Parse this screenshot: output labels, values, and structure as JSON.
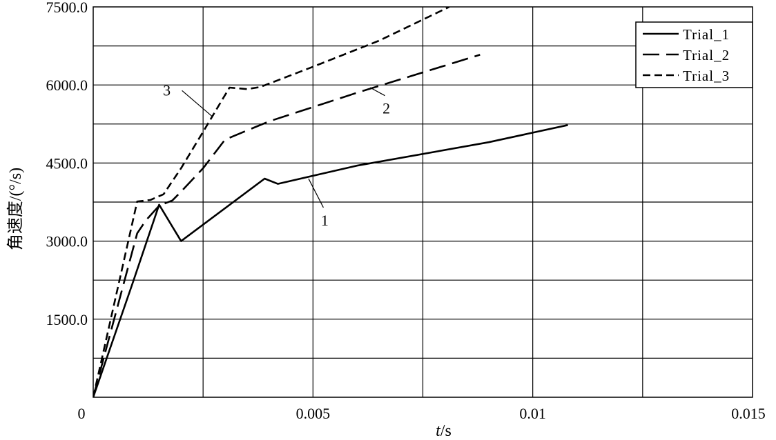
{
  "chart_data": {
    "type": "line",
    "title": "",
    "xlabel_italic": "t",
    "xlabel_rest": "/s",
    "ylabel": "角速度/(°/s)",
    "xlim": [
      0,
      0.015
    ],
    "ylim": [
      0,
      7500
    ],
    "x_ticks": [
      {
        "value": 0,
        "label": "0"
      },
      {
        "value": 0.005,
        "label": "0.005"
      },
      {
        "value": 0.01,
        "label": "0.01"
      },
      {
        "value": 0.015,
        "label": "0.015"
      }
    ],
    "y_ticks": [
      {
        "value": 1500,
        "label": "1500.0"
      },
      {
        "value": 3000,
        "label": "3000.0"
      },
      {
        "value": 4500,
        "label": "4500.0"
      },
      {
        "value": 6000,
        "label": "6000.0"
      },
      {
        "value": 7500,
        "label": "7500.0"
      }
    ],
    "x_grid": [
      0.0025,
      0.005,
      0.0075,
      0.01,
      0.0125
    ],
    "y_grid": [
      750,
      1500,
      2250,
      3000,
      3750,
      4500,
      5250,
      6000,
      6750
    ],
    "grid": true,
    "legend_position": "top-right",
    "series": [
      {
        "name": "Trial_1",
        "dash": "solid",
        "points": [
          [
            0,
            0
          ],
          [
            0.0009,
            2200
          ],
          [
            0.0015,
            3700
          ],
          [
            0.002,
            3000
          ],
          [
            0.0039,
            4200
          ],
          [
            0.0042,
            4100
          ],
          [
            0.006,
            4450
          ],
          [
            0.009,
            4900
          ],
          [
            0.0108,
            5230
          ]
        ]
      },
      {
        "name": "Trial_2",
        "dash": "long",
        "points": [
          [
            0,
            0
          ],
          [
            0.001,
            3150
          ],
          [
            0.0012,
            3400
          ],
          [
            0.0015,
            3680
          ],
          [
            0.0018,
            3780
          ],
          [
            0.002,
            3950
          ],
          [
            0.0025,
            4400
          ],
          [
            0.003,
            4950
          ],
          [
            0.004,
            5300
          ],
          [
            0.006,
            5850
          ],
          [
            0.0088,
            6580
          ]
        ]
      },
      {
        "name": "Trial_3",
        "dash": "short",
        "points": [
          [
            0,
            0
          ],
          [
            0.001,
            3760
          ],
          [
            0.0013,
            3790
          ],
          [
            0.0016,
            3900
          ],
          [
            0.002,
            4400
          ],
          [
            0.0025,
            5100
          ],
          [
            0.0031,
            5950
          ],
          [
            0.0035,
            5920
          ],
          [
            0.0038,
            5960
          ],
          [
            0.005,
            6350
          ],
          [
            0.0065,
            6850
          ],
          [
            0.0081,
            7500
          ]
        ]
      }
    ],
    "annotations": [
      {
        "label": "1",
        "series": 0,
        "at": [
          0.0049,
          4200
        ],
        "text_at": [
          0.0053,
          3300
        ]
      },
      {
        "label": "2",
        "series": 1,
        "at": [
          0.0063,
          5950
        ],
        "text_at": [
          0.0067,
          5450
        ]
      },
      {
        "label": "3",
        "series": 2,
        "at": [
          0.0027,
          5400
        ],
        "text_at": [
          0.0018,
          5800
        ]
      }
    ]
  }
}
